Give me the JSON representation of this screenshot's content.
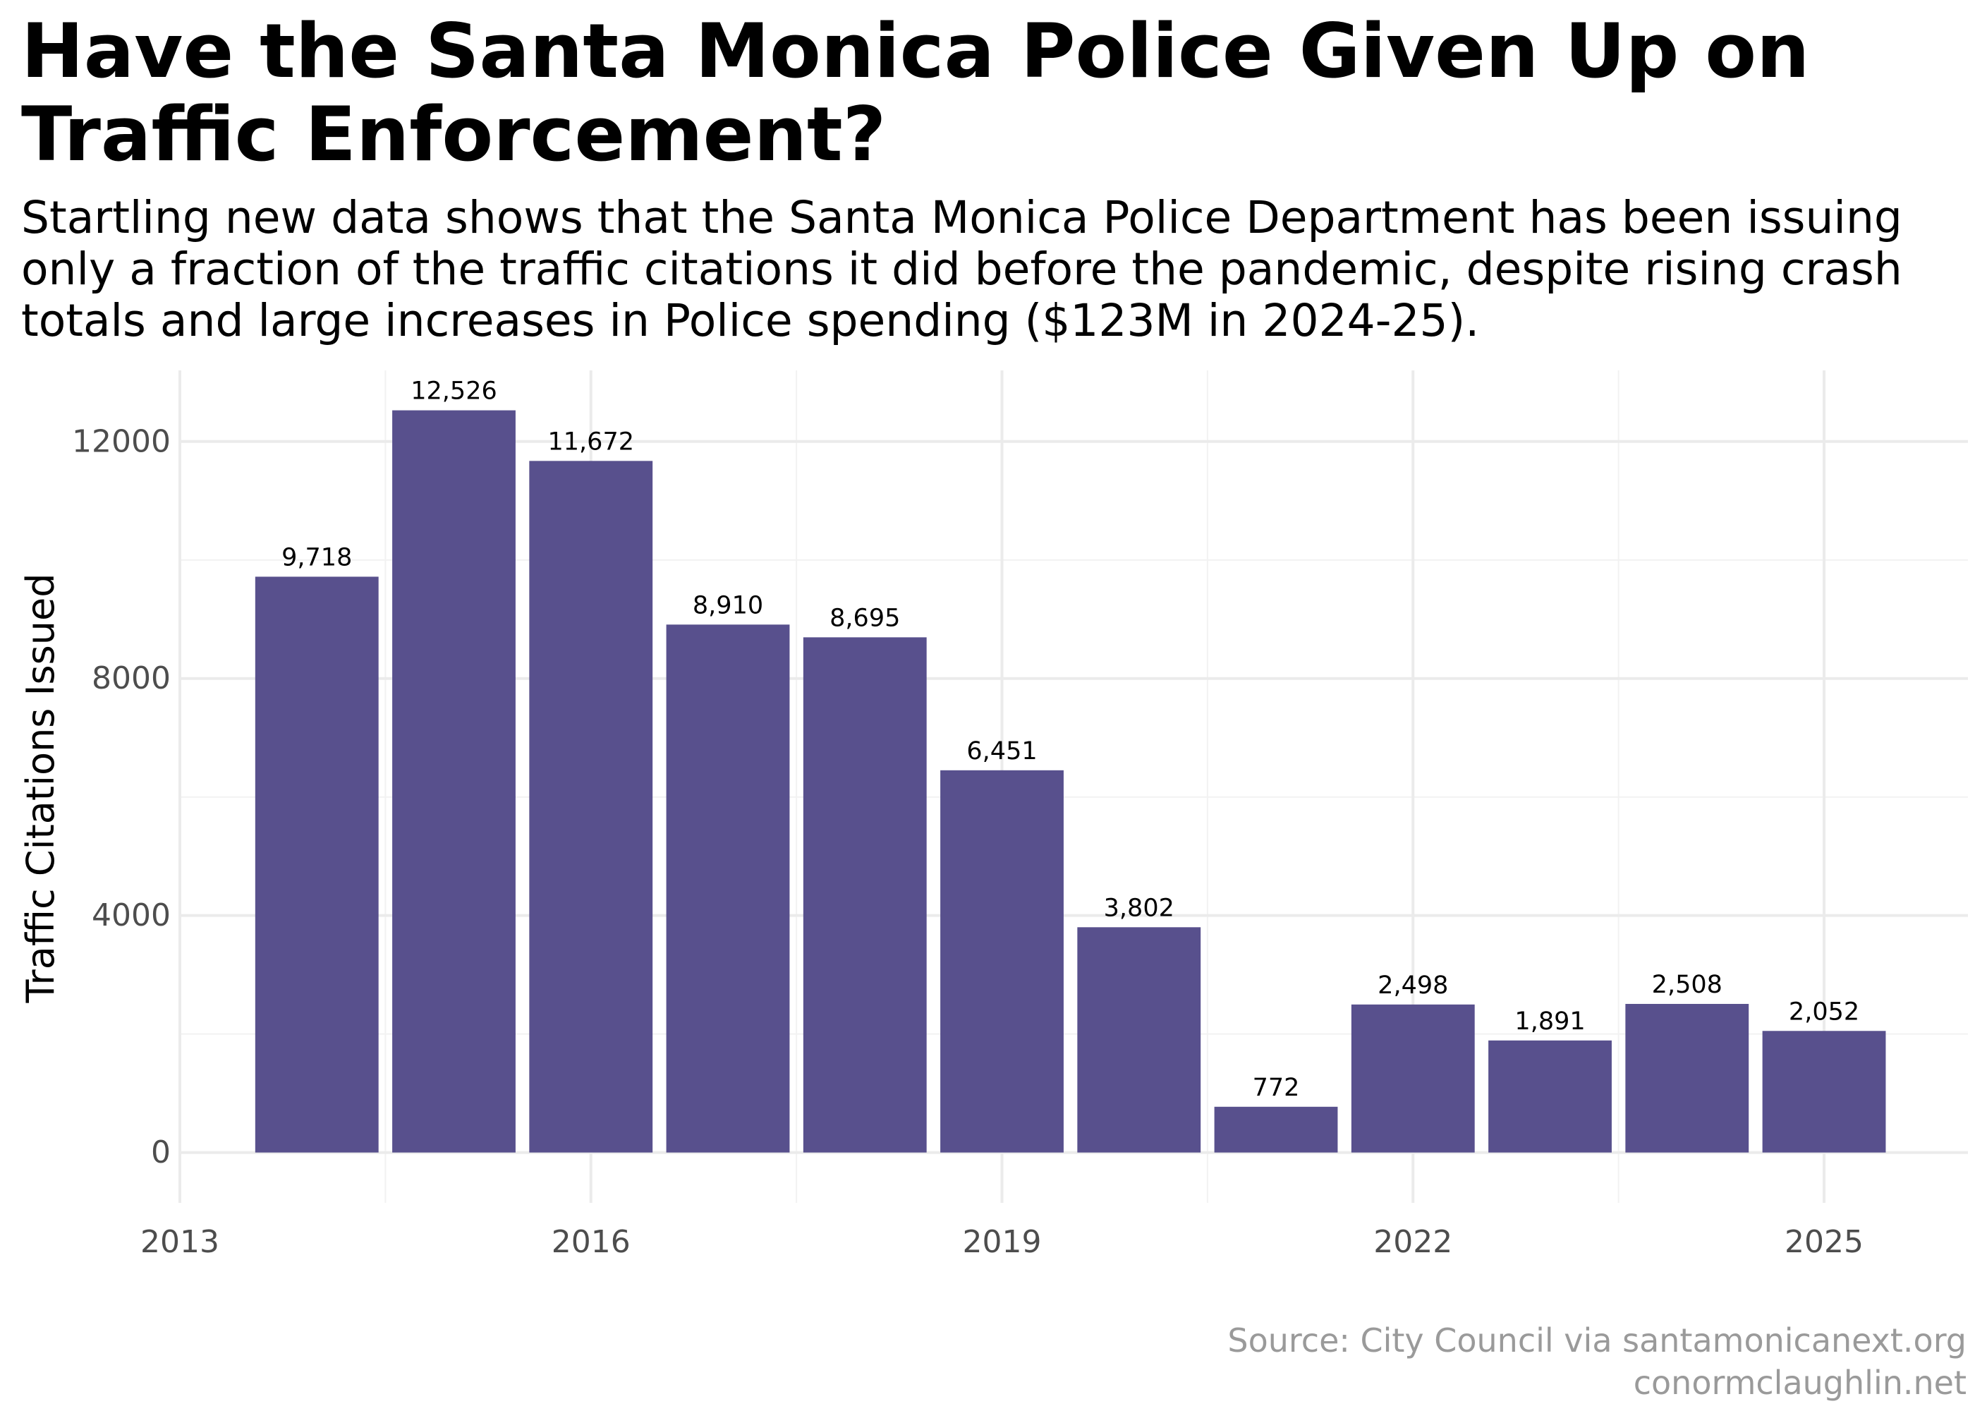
{
  "chart_data": {
    "type": "bar",
    "title": "Have the Santa Monica Police Given Up on Traffic Enforcement?",
    "subtitle": "Startling new data shows that the Santa Monica Police Department has been issuing only a fraction of the traffic citations it did before the pandemic, despite rising crash totals and large increases in Police spending ($123M in 2024-25).",
    "xlabel": "",
    "ylabel": "Traffic Citations Issued",
    "categories": [
      2014,
      2015,
      2016,
      2017,
      2018,
      2019,
      2020,
      2021,
      2022,
      2023,
      2024,
      2025
    ],
    "values": [
      9718,
      12526,
      11672,
      8910,
      8695,
      6451,
      3802,
      772,
      2498,
      1891,
      2508,
      2052
    ],
    "value_labels": [
      "9,718",
      "12,526",
      "11,672",
      "8,910",
      "8,695",
      "6,451",
      "3,802",
      "772",
      "2,498",
      "1,891",
      "2,508",
      "2,052"
    ],
    "x_ticks": [
      2013,
      2016,
      2019,
      2022,
      2025
    ],
    "y_ticks": [
      0,
      4000,
      8000,
      12000
    ],
    "xlim": [
      2013,
      2026.05
    ],
    "ylim": [
      -850,
      13200
    ],
    "grid": true,
    "bar_color": "#58508d",
    "caption": [
      "Source: City Council via santamonicanext.org",
      "conormclaughlin.net"
    ]
  }
}
